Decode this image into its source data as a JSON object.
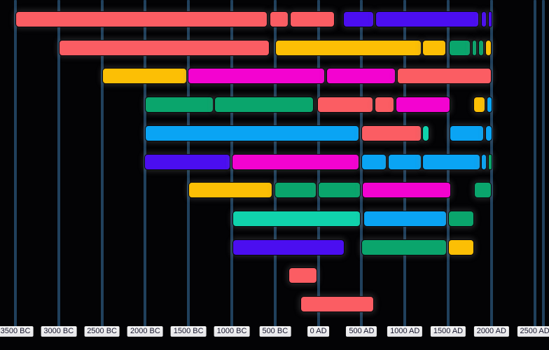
{
  "chart_data": {
    "type": "gantt-timeline",
    "title": "",
    "xlabel": "",
    "ylabel": "",
    "grid": true,
    "legend": false,
    "colors": {
      "background": "#030305",
      "gridline": "#20405C",
      "axis_label_bg": "#E6E6E9",
      "axis_label_text": "#15152C",
      "red": "#FB5D63",
      "indigo": "#4B0EF0",
      "gold": "#FCBF05",
      "magenta": "#F303D0",
      "green": "#0AA56C",
      "cyan": "#0AA4F4",
      "teal": "#10D2AC"
    },
    "x_axis": {
      "unit": "year",
      "min_year": -3500,
      "max_year": 2500,
      "year_step": 500,
      "tick_labels": [
        "3500 BC",
        "3000 BC",
        "2500 BC",
        "2000 BC",
        "1500 BC",
        "1000 BC",
        "500 BC",
        "0 AD",
        "500 AD",
        "1000 AD",
        "1500 AD",
        "2000 AD",
        "2500 AD"
      ],
      "tick_years": [
        -3500,
        -3000,
        -2500,
        -2000,
        -1500,
        -1000,
        -500,
        0,
        500,
        1000,
        1500,
        2000,
        2500
      ]
    },
    "rows": [
      {
        "segments": [
          {
            "start": -3500,
            "end": -590,
            "color": "red"
          },
          {
            "start": -560,
            "end": -345,
            "color": "red"
          },
          {
            "start": -330,
            "end": 190,
            "color": "red"
          },
          {
            "start": 285,
            "end": 640,
            "color": "indigo"
          },
          {
            "start": 660,
            "end": 1860,
            "color": "indigo"
          },
          {
            "start": 1880,
            "end": 1945,
            "color": "indigo"
          },
          {
            "start": 1960,
            "end": 2010,
            "color": "indigo"
          }
        ]
      },
      {
        "segments": [
          {
            "start": -3000,
            "end": -565,
            "color": "red"
          },
          {
            "start": -500,
            "end": 1190,
            "color": "gold"
          },
          {
            "start": 1200,
            "end": 1475,
            "color": "gold"
          },
          {
            "start": 1510,
            "end": 1760,
            "color": "green"
          },
          {
            "start": 1775,
            "end": 1830,
            "color": "green"
          },
          {
            "start": 1850,
            "end": 1910,
            "color": "green"
          },
          {
            "start": 1930,
            "end": 2000,
            "color": "gold"
          }
        ]
      },
      {
        "segments": [
          {
            "start": -2500,
            "end": -1520,
            "color": "gold"
          },
          {
            "start": -1510,
            "end": 75,
            "color": "magenta"
          },
          {
            "start": 90,
            "end": 895,
            "color": "magenta"
          },
          {
            "start": 910,
            "end": 2000,
            "color": "red"
          }
        ]
      },
      {
        "segments": [
          {
            "start": -2000,
            "end": -1210,
            "color": "green"
          },
          {
            "start": -1200,
            "end": -55,
            "color": "green"
          },
          {
            "start": -15,
            "end": 635,
            "color": "red"
          },
          {
            "start": 650,
            "end": 875,
            "color": "red"
          },
          {
            "start": 895,
            "end": 1525,
            "color": "magenta"
          },
          {
            "start": 1790,
            "end": 1930,
            "color": "gold"
          },
          {
            "start": 1945,
            "end": 2010,
            "color": "cyan"
          }
        ]
      },
      {
        "segments": [
          {
            "start": -2000,
            "end": 470,
            "color": "cyan"
          },
          {
            "start": 495,
            "end": 1190,
            "color": "red"
          },
          {
            "start": 1200,
            "end": 1280,
            "color": "teal"
          },
          {
            "start": 1515,
            "end": 1910,
            "color": "cyan"
          },
          {
            "start": 1930,
            "end": 2010,
            "color": "cyan"
          }
        ]
      },
      {
        "segments": [
          {
            "start": -2010,
            "end": -1015,
            "color": "indigo"
          },
          {
            "start": -1000,
            "end": 470,
            "color": "magenta"
          },
          {
            "start": 495,
            "end": 790,
            "color": "cyan"
          },
          {
            "start": 805,
            "end": 1190,
            "color": "cyan"
          },
          {
            "start": 1200,
            "end": 1870,
            "color": "cyan"
          },
          {
            "start": 1880,
            "end": 1945,
            "color": "cyan"
          },
          {
            "start": 1960,
            "end": 2010,
            "color": "green"
          }
        ]
      },
      {
        "segments": [
          {
            "start": -1500,
            "end": -530,
            "color": "gold"
          },
          {
            "start": -505,
            "end": -20,
            "color": "green"
          },
          {
            "start": -5,
            "end": 490,
            "color": "green"
          },
          {
            "start": 505,
            "end": 1530,
            "color": "magenta"
          },
          {
            "start": 1800,
            "end": 2000,
            "color": "green"
          }
        ]
      },
      {
        "segments": [
          {
            "start": -990,
            "end": 490,
            "color": "teal"
          },
          {
            "start": 520,
            "end": 1485,
            "color": "cyan"
          },
          {
            "start": 1500,
            "end": 1800,
            "color": "green"
          }
        ]
      },
      {
        "segments": [
          {
            "start": -990,
            "end": 300,
            "color": "indigo"
          },
          {
            "start": 495,
            "end": 1485,
            "color": "green"
          },
          {
            "start": 1500,
            "end": 1800,
            "color": "gold"
          }
        ]
      },
      {
        "segments": [
          {
            "start": -345,
            "end": -15,
            "color": "red"
          }
        ]
      },
      {
        "segments": [
          {
            "start": -205,
            "end": 640,
            "color": "red"
          }
        ]
      }
    ]
  }
}
